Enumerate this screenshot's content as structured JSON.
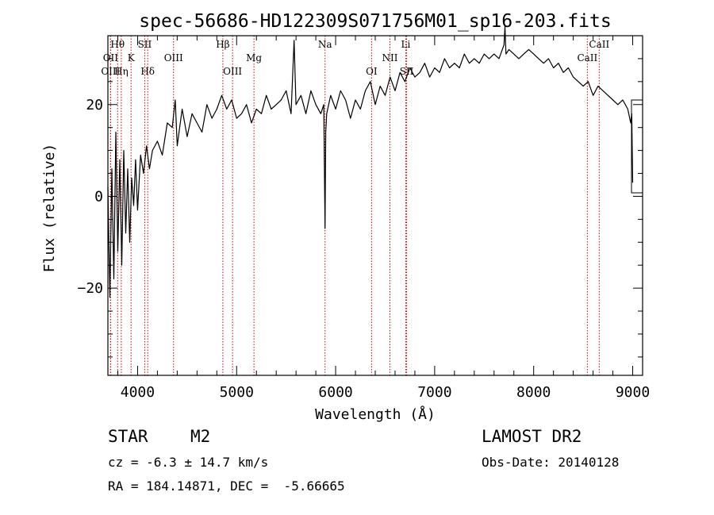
{
  "chart_data": {
    "type": "line",
    "title": "spec-56686-HD122309S071756M01_sp16-203.fits",
    "xlabel": "Wavelength (Å)",
    "ylabel": "Flux (relative)",
    "xlim": [
      3700,
      9100
    ],
    "ylim": [
      -39,
      35
    ],
    "xticks": [
      4000,
      5000,
      6000,
      7000,
      8000,
      9000
    ],
    "yticks": [
      -20,
      0,
      20
    ],
    "spectrum": {
      "x": [
        3700,
        3720,
        3740,
        3760,
        3780,
        3800,
        3820,
        3840,
        3860,
        3880,
        3900,
        3920,
        3940,
        3960,
        3980,
        4000,
        4030,
        4060,
        4090,
        4120,
        4150,
        4200,
        4250,
        4300,
        4350,
        4380,
        4400,
        4450,
        4500,
        4550,
        4600,
        4650,
        4700,
        4750,
        4800,
        4850,
        4900,
        4950,
        5000,
        5050,
        5100,
        5150,
        5200,
        5250,
        5300,
        5350,
        5400,
        5450,
        5500,
        5550,
        5580,
        5600,
        5650,
        5700,
        5750,
        5800,
        5850,
        5880,
        5893,
        5900,
        5910,
        5950,
        6000,
        6050,
        6100,
        6150,
        6200,
        6250,
        6300,
        6350,
        6400,
        6450,
        6500,
        6550,
        6600,
        6650,
        6700,
        6750,
        6800,
        6850,
        6900,
        6950,
        7000,
        7050,
        7100,
        7150,
        7200,
        7250,
        7300,
        7350,
        7400,
        7450,
        7500,
        7550,
        7600,
        7650,
        7700,
        7710,
        7720,
        7750,
        7800,
        7850,
        7900,
        7950,
        8000,
        8050,
        8100,
        8150,
        8200,
        8250,
        8300,
        8350,
        8400,
        8450,
        8500,
        8550,
        8600,
        8650,
        8700,
        8750,
        8800,
        8850,
        8900,
        8950,
        8980,
        8990,
        9000
      ],
      "y": [
        2,
        -22,
        6,
        -18,
        14,
        -12,
        8,
        -15,
        10,
        -8,
        6,
        -10,
        4,
        -2,
        8,
        -3,
        9,
        5,
        11,
        6,
        10,
        12,
        9,
        16,
        15,
        21,
        11,
        19,
        13,
        18,
        16,
        14,
        20,
        17,
        19,
        22,
        19,
        21,
        17,
        18,
        20,
        16,
        19,
        18,
        22,
        19,
        20,
        21,
        23,
        18,
        34,
        20,
        22,
        18,
        23,
        20,
        18,
        20,
        -7,
        14,
        18,
        22,
        19,
        23,
        21,
        17,
        21,
        19,
        23,
        25,
        20,
        24,
        22,
        26,
        23,
        27,
        25,
        28,
        26,
        27,
        29,
        26,
        28,
        27,
        30,
        28,
        29,
        28,
        31,
        29,
        30,
        29,
        31,
        30,
        31,
        30,
        33,
        37,
        31,
        32,
        31,
        30,
        31,
        32,
        31,
        30,
        29,
        30,
        28,
        29,
        27,
        28,
        26,
        25,
        24,
        25,
        22,
        24,
        23,
        22,
        21,
        20,
        21,
        19,
        16,
        18,
        3
      ]
    },
    "line_markers": [
      {
        "label": "Hθ",
        "x": 3798,
        "row": 0
      },
      {
        "label": "OII",
        "x": 3727,
        "row": 1
      },
      {
        "label": "OIII",
        "x": 3727,
        "row": 2
      },
      {
        "label": "Hη",
        "x": 3835,
        "row": 2
      },
      {
        "label": "K",
        "x": 3934,
        "row": 1
      },
      {
        "label": "SII",
        "x": 4072,
        "row": 0
      },
      {
        "label": "Hδ",
        "x": 4102,
        "row": 2
      },
      {
        "label": "OIII",
        "x": 4363,
        "row": 1
      },
      {
        "label": "Hβ",
        "x": 4861,
        "row": 0
      },
      {
        "label": "OIII",
        "x": 4959,
        "row": 2
      },
      {
        "label": "Mg",
        "x": 5175,
        "row": 1
      },
      {
        "label": "Na",
        "x": 5893,
        "row": 0
      },
      {
        "label": "OI",
        "x": 6363,
        "row": 2
      },
      {
        "label": "NII",
        "x": 6548,
        "row": 1
      },
      {
        "label": "Li",
        "x": 6708,
        "row": 0
      },
      {
        "label": "SII",
        "x": 6717,
        "row": 2
      },
      {
        "label": "CaII",
        "x": 8542,
        "row": 1
      },
      {
        "label": "CaII",
        "x": 8662,
        "row": 0
      }
    ],
    "marker_color": "#cc0000",
    "line_color": "#000000",
    "grid": false
  },
  "info": {
    "object_class": "STAR",
    "subclass": "M2",
    "survey": "LAMOST DR2",
    "velocity": "cz = -6.3 ± 14.7 km/s",
    "obs_date": "Obs-Date: 20140128",
    "coords": "RA = 184.14871, DEC =  -5.66665"
  }
}
